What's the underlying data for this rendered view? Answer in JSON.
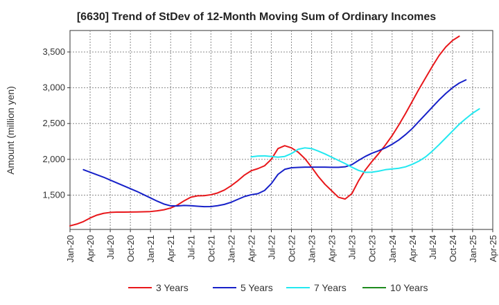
{
  "chart_data": {
    "type": "line",
    "title": "[6630]  Trend of StDev of 12-Month Moving Sum of Ordinary Incomes",
    "xlabel": "",
    "ylabel": "Amount (million yen)",
    "ylim": [
      1020,
      3800
    ],
    "yticks": [
      1500,
      2000,
      2500,
      3000,
      3500
    ],
    "ytick_labels": [
      "1,500",
      "2,000",
      "2,500",
      "3,000",
      "3,500"
    ],
    "x_index_range": [
      0,
      63
    ],
    "xticks": [
      {
        "label": "Jan-20",
        "index": 0
      },
      {
        "label": "Apr-20",
        "index": 3
      },
      {
        "label": "Jul-20",
        "index": 6
      },
      {
        "label": "Oct-20",
        "index": 9
      },
      {
        "label": "Jan-21",
        "index": 12
      },
      {
        "label": "Apr-21",
        "index": 15
      },
      {
        "label": "Jul-21",
        "index": 18
      },
      {
        "label": "Oct-21",
        "index": 21
      },
      {
        "label": "Jan-22",
        "index": 24
      },
      {
        "label": "Apr-22",
        "index": 27
      },
      {
        "label": "Jul-22",
        "index": 30
      },
      {
        "label": "Oct-22",
        "index": 33
      },
      {
        "label": "Jan-23",
        "index": 36
      },
      {
        "label": "Apr-23",
        "index": 39
      },
      {
        "label": "Jul-23",
        "index": 42
      },
      {
        "label": "Oct-23",
        "index": 45
      },
      {
        "label": "Jan-24",
        "index": 48
      },
      {
        "label": "Apr-24",
        "index": 51
      },
      {
        "label": "Jul-24",
        "index": 54
      },
      {
        "label": "Oct-24",
        "index": 57
      },
      {
        "label": "Jan-25",
        "index": 60
      },
      {
        "label": "Apr-25",
        "index": 63
      }
    ],
    "series": [
      {
        "name": "3 Years",
        "color": "#e8161a",
        "start_index": 0,
        "values": [
          1070,
          1095,
          1130,
          1180,
          1220,
          1245,
          1258,
          1262,
          1262,
          1263,
          1265,
          1267,
          1270,
          1280,
          1295,
          1320,
          1360,
          1420,
          1470,
          1490,
          1492,
          1505,
          1530,
          1570,
          1630,
          1700,
          1780,
          1840,
          1870,
          1910,
          2000,
          2150,
          2190,
          2160,
          2100,
          2010,
          1890,
          1760,
          1650,
          1560,
          1470,
          1445,
          1520,
          1700,
          1850,
          1970,
          2080,
          2200,
          2330,
          2480,
          2640,
          2810,
          2980,
          3140,
          3300,
          3450,
          3570,
          3660,
          3720
        ]
      },
      {
        "name": "5 Years",
        "color": "#1620c8",
        "start_index": 2,
        "values": [
          1855,
          1820,
          1785,
          1750,
          1710,
          1670,
          1630,
          1590,
          1550,
          1505,
          1460,
          1415,
          1375,
          1350,
          1348,
          1355,
          1352,
          1345,
          1338,
          1340,
          1352,
          1370,
          1400,
          1440,
          1480,
          1505,
          1520,
          1565,
          1660,
          1790,
          1860,
          1882,
          1887,
          1890,
          1890,
          1890,
          1890,
          1888,
          1888,
          1895,
          1925,
          1985,
          2040,
          2085,
          2120,
          2160,
          2210,
          2270,
          2345,
          2430,
          2530,
          2630,
          2730,
          2830,
          2920,
          3000,
          3065,
          3110
        ]
      },
      {
        "name": "7 Years",
        "color": "#22e8f0",
        "start_index": 27,
        "values": [
          2035,
          2045,
          2048,
          2040,
          2030,
          2040,
          2080,
          2140,
          2160,
          2150,
          2115,
          2075,
          2030,
          1985,
          1940,
          1890,
          1845,
          1818,
          1820,
          1835,
          1855,
          1865,
          1875,
          1895,
          1930,
          1975,
          2035,
          2115,
          2205,
          2300,
          2395,
          2490,
          2570,
          2645,
          2705
        ]
      },
      {
        "name": "10 Years",
        "color": "#1c8a1c",
        "start_index": 0,
        "values": []
      }
    ],
    "legend": [
      "3 Years",
      "5 Years",
      "7 Years",
      "10 Years"
    ]
  }
}
